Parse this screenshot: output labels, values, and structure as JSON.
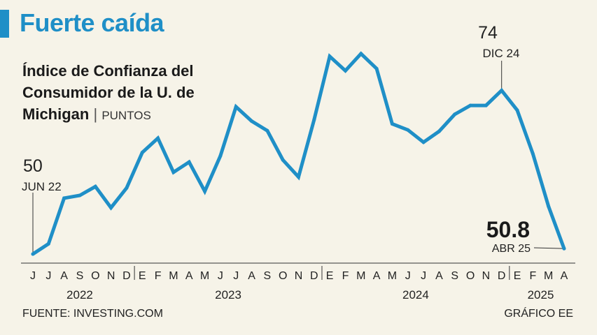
{
  "headline": "Fuerte caída",
  "chart_data": {
    "type": "line",
    "title": "Índice de Confianza del Consumidor de la U. de Michigan",
    "unit": "PUNTOS",
    "color": "#1f8fc7",
    "x": [
      "J",
      "J",
      "A",
      "S",
      "O",
      "N",
      "D",
      "E",
      "F",
      "M",
      "A",
      "M",
      "J",
      "J",
      "A",
      "S",
      "O",
      "N",
      "D",
      "E",
      "F",
      "M",
      "A",
      "M",
      "J",
      "J",
      "A",
      "S",
      "O",
      "N",
      "D",
      "E",
      "F",
      "M",
      "A"
    ],
    "values": [
      50.0,
      51.5,
      58.2,
      58.6,
      59.9,
      56.8,
      59.7,
      64.9,
      67.0,
      62.0,
      63.5,
      59.2,
      64.4,
      71.6,
      69.5,
      68.1,
      63.8,
      61.3,
      69.7,
      79.0,
      76.9,
      79.4,
      77.2,
      69.1,
      68.2,
      66.4,
      68.0,
      70.5,
      71.8,
      71.8,
      74.0,
      71.1,
      64.7,
      57.0,
      50.8
    ],
    "x_groups": [
      {
        "label": "2022",
        "start": 0,
        "end": 6
      },
      {
        "label": "2023",
        "start": 7,
        "end": 18
      },
      {
        "label": "2024",
        "start": 19,
        "end": 30
      },
      {
        "label": "2025",
        "start": 31,
        "end": 34
      }
    ],
    "ylim": [
      50,
      80
    ],
    "annotations": [
      {
        "index": 0,
        "value": "50",
        "label": "JUN 22"
      },
      {
        "index": 30,
        "value": "74",
        "label": "DIC 24"
      },
      {
        "index": 34,
        "value": "50.8",
        "label": "ABR 25"
      }
    ]
  },
  "source": "FUENTE: INVESTING.COM",
  "credit": "GRÁFICO EE"
}
